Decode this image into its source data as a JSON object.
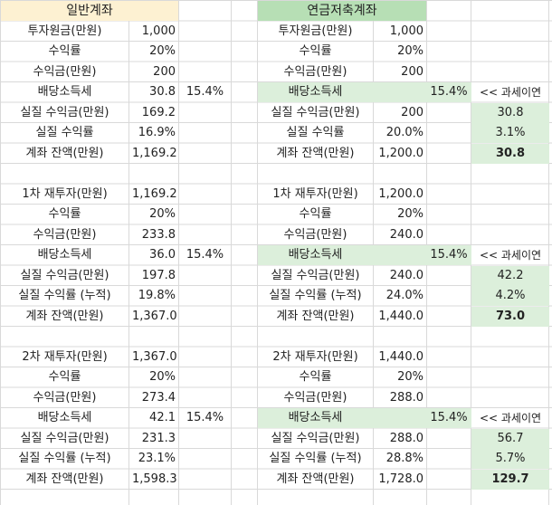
{
  "general": {
    "header": "일반계좌",
    "blocks": [
      {
        "rows": [
          {
            "label": "투자원금(만원)",
            "value": "1,000"
          },
          {
            "label": "수익률",
            "value": "20%"
          },
          {
            "label": "수익금(만원)",
            "value": "200"
          },
          {
            "label": "배당소득세",
            "value": "30.8",
            "rate": "15.4%"
          },
          {
            "label": "실질 수익금(만원)",
            "value": "169.2"
          },
          {
            "label": "실질 수익률",
            "value": "16.9%"
          },
          {
            "label": "계좌 잔액(만원)",
            "value": "1,169.2"
          }
        ]
      },
      {
        "rows": [
          {
            "label": "1차 재투자(만원)",
            "value": "1,169.2"
          },
          {
            "label": "수익률",
            "value": "20%"
          },
          {
            "label": "수익금(만원)",
            "value": "233.8"
          },
          {
            "label": "배당소득세",
            "value": "36.0",
            "rate": "15.4%"
          },
          {
            "label": "실질 수익금(만원)",
            "value": "197.8"
          },
          {
            "label": "실질 수익률 (누적)",
            "value": "19.8%"
          },
          {
            "label": "계좌 잔액(만원)",
            "value": "1,367.0"
          }
        ]
      },
      {
        "rows": [
          {
            "label": "2차 재투자(만원)",
            "value": "1,367.0"
          },
          {
            "label": "수익률",
            "value": "20%"
          },
          {
            "label": "수익금(만원)",
            "value": "273.4"
          },
          {
            "label": "배당소득세",
            "value": "42.1",
            "rate": "15.4%"
          },
          {
            "label": "실질 수익금(만원)",
            "value": "231.3"
          },
          {
            "label": "실질 수익률 (누적)",
            "value": "23.1%"
          },
          {
            "label": "계좌 잔액(만원)",
            "value": "1,598.3"
          }
        ]
      }
    ]
  },
  "pension": {
    "header": "연금저축계좌",
    "blocks": [
      {
        "rows": [
          {
            "label": "투자원금(만원)",
            "value": "1,000"
          },
          {
            "label": "수익률",
            "value": "20%"
          },
          {
            "label": "수익금(만원)",
            "value": "200"
          },
          {
            "label": "배당소득세",
            "value": "",
            "rate": "15.4%",
            "note": "<< 과세이연"
          },
          {
            "label": "실질 수익금(만원)",
            "value": "200",
            "diff": "30.8"
          },
          {
            "label": "실질 수익률",
            "value": "20.0%",
            "diff": "3.1%"
          },
          {
            "label": "계좌 잔액(만원)",
            "value": "1,200.0",
            "diff": "30.8"
          }
        ]
      },
      {
        "rows": [
          {
            "label": "1차 재투자(만원)",
            "value": "1,200.0"
          },
          {
            "label": "수익률",
            "value": "20%"
          },
          {
            "label": "수익금(만원)",
            "value": "240.0"
          },
          {
            "label": "배당소득세",
            "value": "",
            "rate": "15.4%",
            "note": "<< 과세이연"
          },
          {
            "label": "실질 수익금(만원)",
            "value": "240.0",
            "diff": "42.2"
          },
          {
            "label": "실질 수익률 (누적)",
            "value": "24.0%",
            "diff": "4.2%"
          },
          {
            "label": "계좌 잔액(만원)",
            "value": "1,440.0",
            "diff": "73.0"
          }
        ]
      },
      {
        "rows": [
          {
            "label": "2차 재투자(만원)",
            "value": "1,440.0"
          },
          {
            "label": "수익률",
            "value": "20%"
          },
          {
            "label": "수익금(만원)",
            "value": "288.0"
          },
          {
            "label": "배당소득세",
            "value": "",
            "rate": "15.4%",
            "note": "<< 과세이연"
          },
          {
            "label": "실질 수익금(만원)",
            "value": "288.0",
            "diff": "56.7"
          },
          {
            "label": "실질 수익률 (누적)",
            "value": "28.8%",
            "diff": "5.7%"
          },
          {
            "label": "계좌 잔액(만원)",
            "value": "1,728.0",
            "diff": "129.7"
          }
        ]
      }
    ]
  }
}
